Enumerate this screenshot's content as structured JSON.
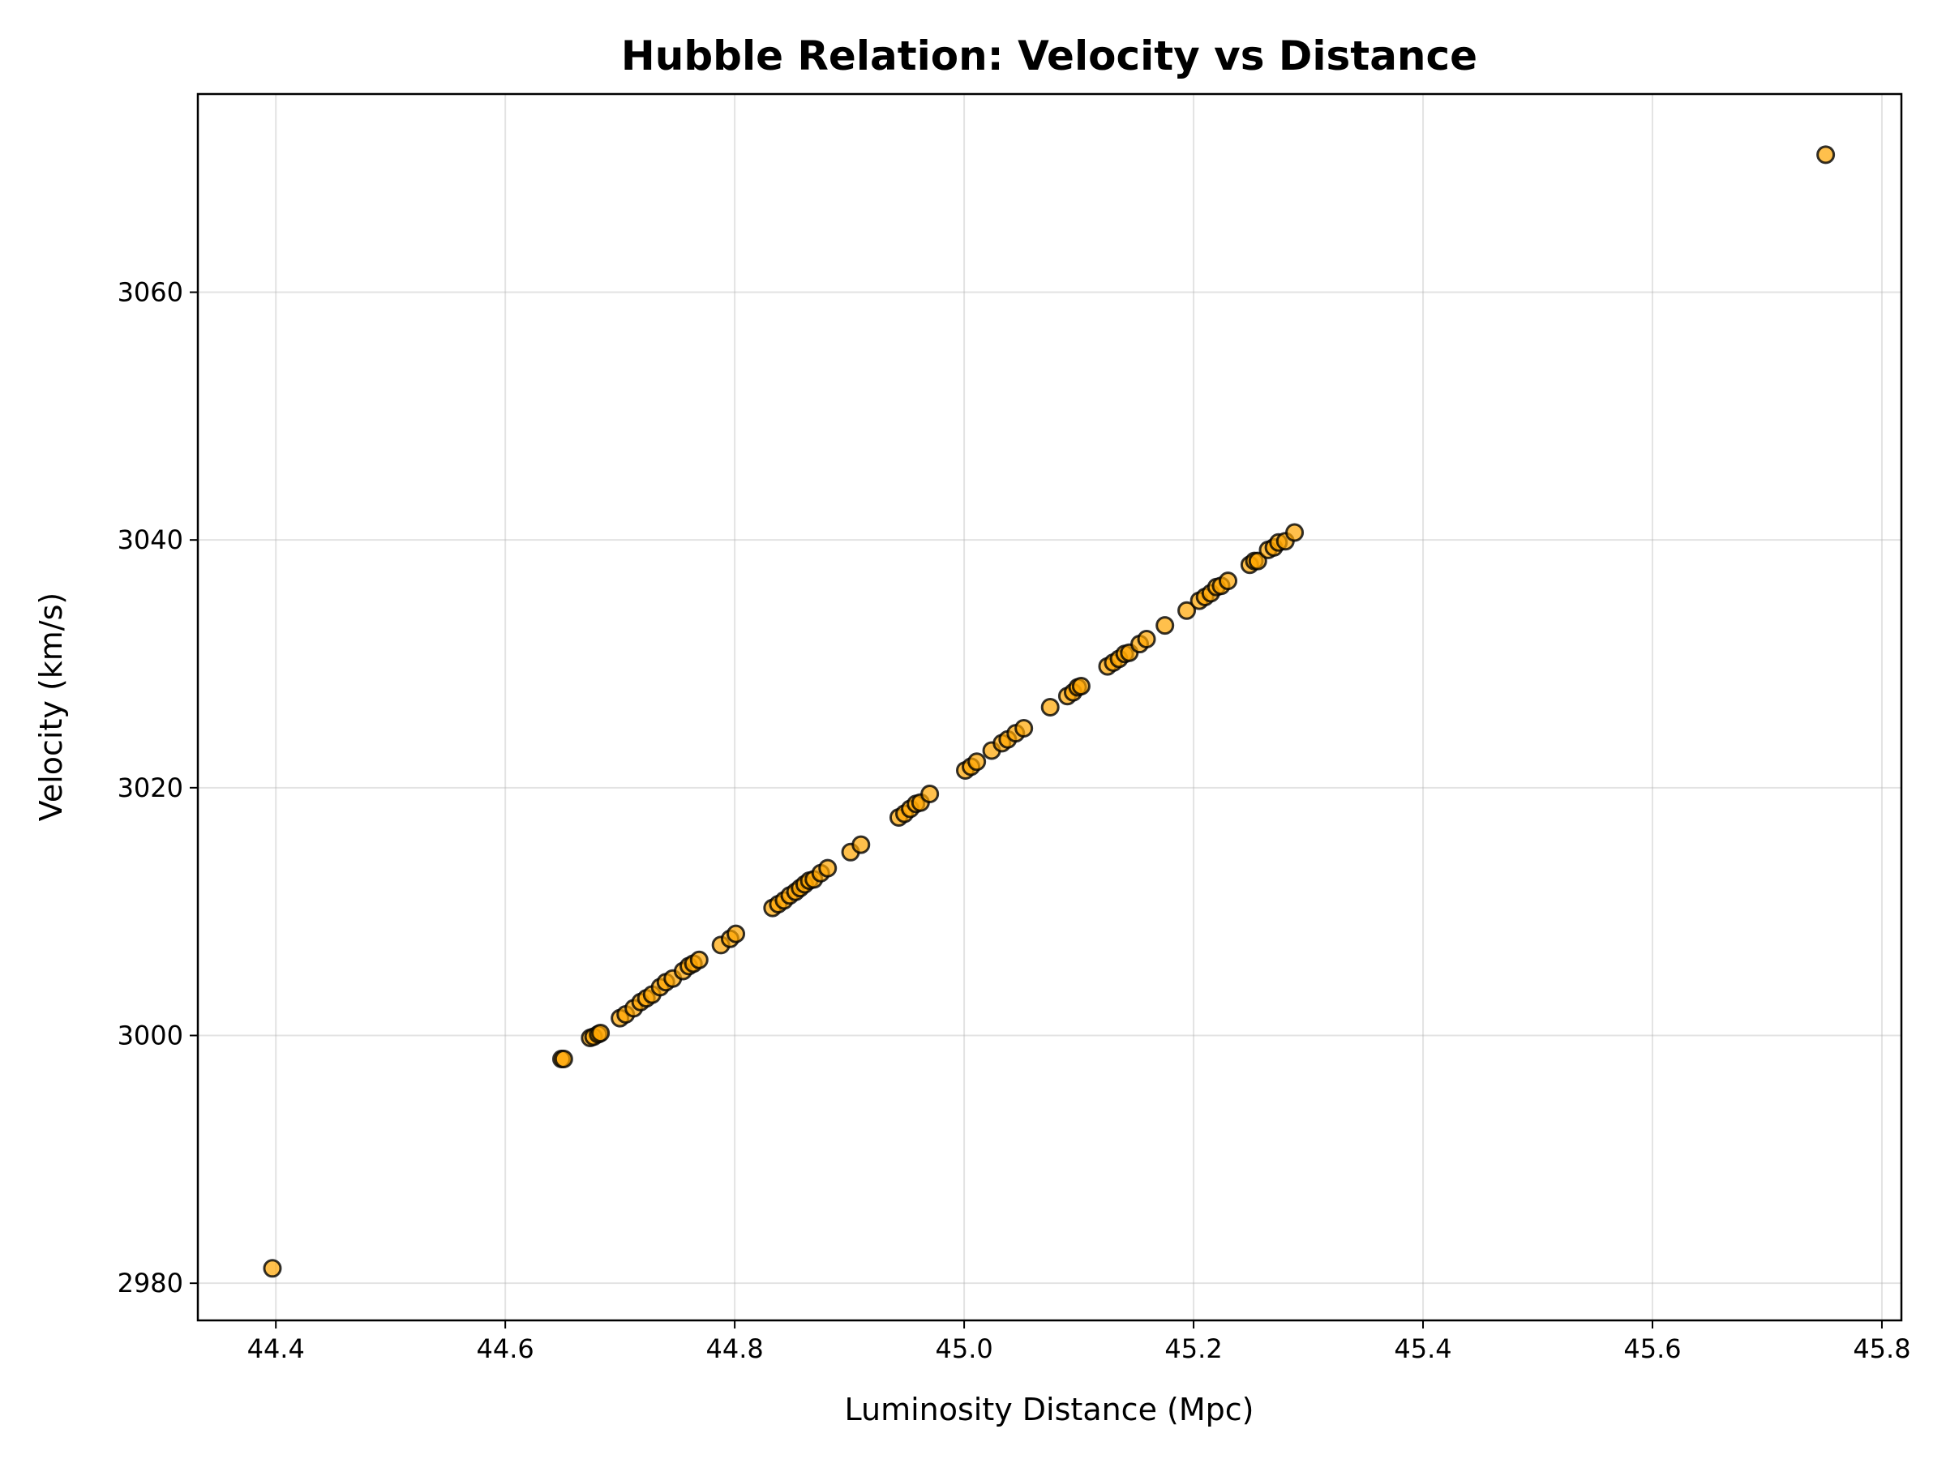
{
  "chart_data": {
    "type": "scatter",
    "title": "Hubble Relation: Velocity vs Distance",
    "xlabel": "Luminosity Distance (Mpc)",
    "ylabel": "Velocity (km/s)",
    "xlim": [
      44.332,
      45.817
    ],
    "ylim": [
      2977,
      3076
    ],
    "xticks": [
      44.4,
      44.6,
      44.8,
      45.0,
      45.2,
      45.4,
      45.6,
      45.8
    ],
    "xtick_labels": [
      "44.4",
      "44.6",
      "44.8",
      "45.0",
      "45.2",
      "45.4",
      "45.6",
      "45.8"
    ],
    "yticks": [
      2980,
      3000,
      3020,
      3040,
      3060
    ],
    "ytick_labels": [
      "2980",
      "3000",
      "3020",
      "3040",
      "3060"
    ],
    "grid": true,
    "marker_color": "#FFA500",
    "marker_alpha": 0.7,
    "marker_edge_color": "#000000",
    "points": [
      [
        44.397,
        2981.2
      ],
      [
        44.649,
        2998.1
      ],
      [
        44.651,
        2998.1
      ],
      [
        44.674,
        2999.8
      ],
      [
        44.677,
        2999.9
      ],
      [
        44.681,
        3000.1
      ],
      [
        44.683,
        3000.2
      ],
      [
        44.7,
        3001.4
      ],
      [
        44.705,
        3001.7
      ],
      [
        44.712,
        3002.2
      ],
      [
        44.718,
        3002.7
      ],
      [
        44.723,
        3003.0
      ],
      [
        44.728,
        3003.3
      ],
      [
        44.735,
        3003.9
      ],
      [
        44.74,
        3004.3
      ],
      [
        44.746,
        3004.6
      ],
      [
        44.755,
        3005.2
      ],
      [
        44.76,
        3005.6
      ],
      [
        44.764,
        3005.8
      ],
      [
        44.769,
        3006.1
      ],
      [
        44.788,
        3007.3
      ],
      [
        44.796,
        3007.8
      ],
      [
        44.801,
        3008.2
      ],
      [
        44.833,
        3010.3
      ],
      [
        44.838,
        3010.6
      ],
      [
        44.843,
        3010.9
      ],
      [
        44.848,
        3011.3
      ],
      [
        44.853,
        3011.6
      ],
      [
        44.857,
        3011.9
      ],
      [
        44.861,
        3012.2
      ],
      [
        44.865,
        3012.5
      ],
      [
        44.869,
        3012.6
      ],
      [
        44.875,
        3013.1
      ],
      [
        44.881,
        3013.5
      ],
      [
        44.901,
        3014.8
      ],
      [
        44.91,
        3015.4
      ],
      [
        44.943,
        3017.6
      ],
      [
        44.948,
        3017.9
      ],
      [
        44.953,
        3018.3
      ],
      [
        44.958,
        3018.7
      ],
      [
        44.962,
        3018.8
      ],
      [
        44.97,
        3019.5
      ],
      [
        45.001,
        3021.4
      ],
      [
        45.006,
        3021.7
      ],
      [
        45.011,
        3022.1
      ],
      [
        45.024,
        3023.0
      ],
      [
        45.033,
        3023.6
      ],
      [
        45.038,
        3023.9
      ],
      [
        45.045,
        3024.4
      ],
      [
        45.052,
        3024.8
      ],
      [
        45.075,
        3026.5
      ],
      [
        45.09,
        3027.4
      ],
      [
        45.095,
        3027.7
      ],
      [
        45.099,
        3028.1
      ],
      [
        45.102,
        3028.2
      ],
      [
        45.125,
        3029.8
      ],
      [
        45.13,
        3030.1
      ],
      [
        45.135,
        3030.4
      ],
      [
        45.14,
        3030.8
      ],
      [
        45.144,
        3030.9
      ],
      [
        45.153,
        3031.6
      ],
      [
        45.159,
        3032.0
      ],
      [
        45.175,
        3033.1
      ],
      [
        45.194,
        3034.3
      ],
      [
        45.205,
        3035.1
      ],
      [
        45.21,
        3035.4
      ],
      [
        45.215,
        3035.7
      ],
      [
        45.22,
        3036.2
      ],
      [
        45.224,
        3036.3
      ],
      [
        45.23,
        3036.7
      ],
      [
        45.249,
        3038.0
      ],
      [
        45.253,
        3038.3
      ],
      [
        45.256,
        3038.3
      ],
      [
        45.265,
        3039.2
      ],
      [
        45.27,
        3039.4
      ],
      [
        45.274,
        3039.8
      ],
      [
        45.28,
        3039.9
      ],
      [
        45.288,
        3040.6
      ],
      [
        45.751,
        3071.1
      ]
    ]
  }
}
